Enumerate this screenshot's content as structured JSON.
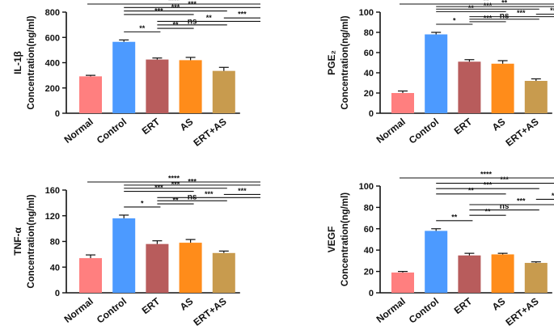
{
  "colors": [
    "#FF7F7F",
    "#4C9AFF",
    "#B85C5C",
    "#FF8C1A",
    "#C89B4E"
  ],
  "chart_data": [
    {
      "type": "bar",
      "ylabel_top": "IL-1β",
      "ylabel": "Concentration(ng/ml)",
      "categories": [
        "Normal",
        "Control",
        "ERT",
        "AS",
        "ERT+AS"
      ],
      "values": [
        292,
        565,
        425,
        420,
        335
      ],
      "errors": [
        8,
        15,
        12,
        22,
        28
      ],
      "ylim": [
        0,
        800
      ],
      "yticks": [
        0,
        200,
        400,
        600,
        800
      ],
      "brackets": [
        {
          "from": 1,
          "to": 2,
          "label": "**"
        },
        {
          "from": 2,
          "to": 3,
          "label": "**"
        },
        {
          "from": 2,
          "to": 4,
          "label": "ns"
        },
        {
          "from": 2,
          "to": 5,
          "label": "**"
        },
        {
          "from": 4,
          "to": 5,
          "label": "***"
        },
        {
          "from": 1,
          "to": 3,
          "label": "***"
        },
        {
          "from": 1,
          "to": 4,
          "label": "***"
        },
        {
          "from": 1,
          "to": 5,
          "label": "***"
        },
        {
          "from": 0,
          "to": 5,
          "label": "****"
        }
      ]
    },
    {
      "type": "bar",
      "ylabel_top": "PGE₂",
      "ylabel": "Concentration(ng/ml)",
      "categories": [
        "Normal",
        "Control",
        "ERT",
        "AS",
        "ERT+AS"
      ],
      "values": [
        20,
        78,
        51,
        49,
        32
      ],
      "errors": [
        2,
        2,
        2,
        3,
        2
      ],
      "ylim": [
        0,
        100
      ],
      "yticks": [
        0,
        20,
        40,
        60,
        80,
        100
      ],
      "brackets": [
        {
          "from": 1,
          "to": 2,
          "label": "*"
        },
        {
          "from": 2,
          "to": 3,
          "label": "***"
        },
        {
          "from": 2,
          "to": 4,
          "label": "ns"
        },
        {
          "from": 2,
          "to": 5,
          "label": "***"
        },
        {
          "from": 4,
          "to": 5,
          "label": "***"
        },
        {
          "from": 1,
          "to": 3,
          "label": "**"
        },
        {
          "from": 1,
          "to": 4,
          "label": "***"
        },
        {
          "from": 1,
          "to": 5,
          "label": "**"
        },
        {
          "from": 0,
          "to": 5,
          "label": "**"
        }
      ]
    },
    {
      "type": "bar",
      "ylabel_top": "TNF-α",
      "ylabel": "Concentration(ng/ml)",
      "categories": [
        "Normal",
        "Control",
        "ERT",
        "AS",
        "ERT+AS"
      ],
      "values": [
        54,
        116,
        76,
        78,
        62
      ],
      "errors": [
        5,
        5,
        5,
        5,
        3
      ],
      "ylim": [
        0,
        160
      ],
      "yticks": [
        0,
        40,
        80,
        120,
        160
      ],
      "brackets": [
        {
          "from": 1,
          "to": 2,
          "label": "*"
        },
        {
          "from": 2,
          "to": 3,
          "label": "**"
        },
        {
          "from": 2,
          "to": 4,
          "label": "ns"
        },
        {
          "from": 2,
          "to": 5,
          "label": "***"
        },
        {
          "from": 4,
          "to": 5,
          "label": "***"
        },
        {
          "from": 1,
          "to": 3,
          "label": "***"
        },
        {
          "from": 1,
          "to": 4,
          "label": "***"
        },
        {
          "from": 1,
          "to": 5,
          "label": "***"
        },
        {
          "from": 0,
          "to": 5,
          "label": "****"
        }
      ]
    },
    {
      "type": "bar",
      "ylabel_top": "VEGF",
      "ylabel": "Concentration(ng/ml)",
      "categories": [
        "Normal",
        "Control",
        "ERT",
        "AS",
        "ERT+AS"
      ],
      "values": [
        19,
        58,
        35,
        36,
        28
      ],
      "errors": [
        1,
        2,
        2,
        1,
        1
      ],
      "ylim": [
        0,
        100
      ],
      "yticks": [
        0,
        20,
        40,
        60,
        80,
        100
      ],
      "brackets": [
        {
          "from": 1,
          "to": 2,
          "label": "**"
        },
        {
          "from": 2,
          "to": 3,
          "label": "**"
        },
        {
          "from": 2,
          "to": 4,
          "label": "ns"
        },
        {
          "from": 2,
          "to": 5,
          "label": "***"
        },
        {
          "from": 4,
          "to": 5,
          "label": "**"
        },
        {
          "from": 1,
          "to": 3,
          "label": "**"
        },
        {
          "from": 1,
          "to": 4,
          "label": "***"
        },
        {
          "from": 1,
          "to": 5,
          "label": "***"
        },
        {
          "from": 0,
          "to": 5,
          "label": "****"
        }
      ]
    }
  ]
}
